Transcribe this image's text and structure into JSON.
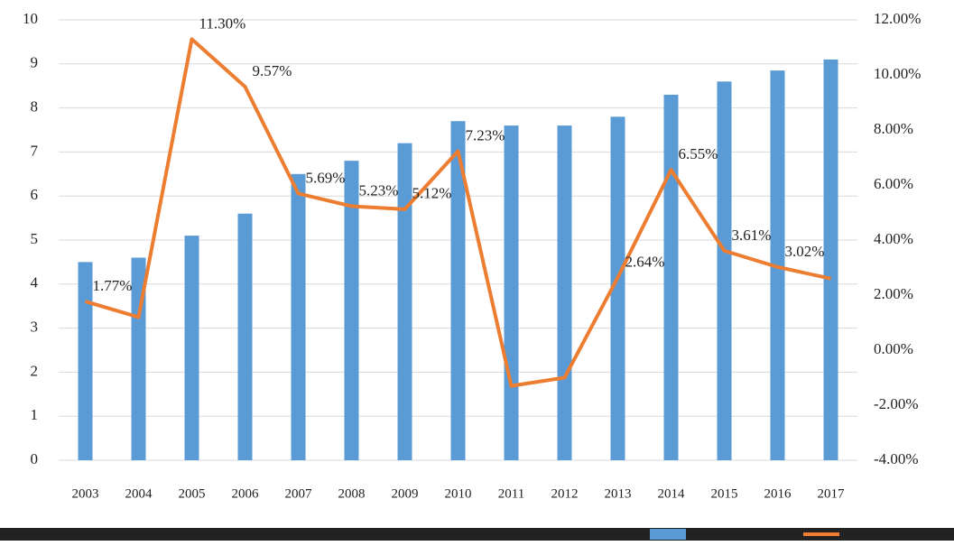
{
  "chart_data": {
    "type": "bar-line",
    "categories": [
      "2003",
      "2004",
      "2005",
      "2006",
      "2007",
      "2008",
      "2009",
      "2010",
      "2011",
      "2012",
      "2013",
      "2014",
      "2015",
      "2016",
      "2017"
    ],
    "series": [
      {
        "type": "bar",
        "color": "#5b9bd5",
        "values": [
          4.5,
          4.6,
          5.1,
          5.6,
          6.5,
          6.8,
          7.2,
          7.7,
          7.6,
          7.6,
          7.8,
          8.3,
          8.6,
          8.85,
          9.1
        ]
      },
      {
        "type": "line",
        "axis": "y2",
        "color": "#ed7d31",
        "values": [
          1.77,
          1.2,
          11.3,
          9.57,
          5.69,
          5.23,
          5.12,
          7.23,
          -1.3,
          -1.0,
          2.64,
          6.55,
          3.61,
          3.02,
          2.6
        ],
        "value_labels": [
          "1.77%",
          null,
          "11.30%",
          "9.57%",
          "5.69%",
          "5.23%",
          "5.12%",
          "7.23%",
          null,
          null,
          "2.64%",
          "6.55%",
          "3.61%",
          "3.02%",
          null
        ]
      }
    ],
    "ylim": [
      0,
      10
    ],
    "yticks": [
      0,
      1,
      2,
      3,
      4,
      5,
      6,
      7,
      8,
      9,
      10
    ],
    "y2lim": [
      -4,
      12
    ],
    "y2ticks": [
      {
        "value": -4,
        "label": "-4.00%"
      },
      {
        "value": -2,
        "label": "-2.00%"
      },
      {
        "value": 0,
        "label": "0.00%"
      },
      {
        "value": 2,
        "label": "2.00%"
      },
      {
        "value": 4,
        "label": "4.00%"
      },
      {
        "value": 6,
        "label": "6.00%"
      },
      {
        "value": 8,
        "label": "8.00%"
      },
      {
        "value": 10,
        "label": "10.00%"
      },
      {
        "value": 12,
        "label": "12.00%"
      }
    ],
    "grid": true
  }
}
